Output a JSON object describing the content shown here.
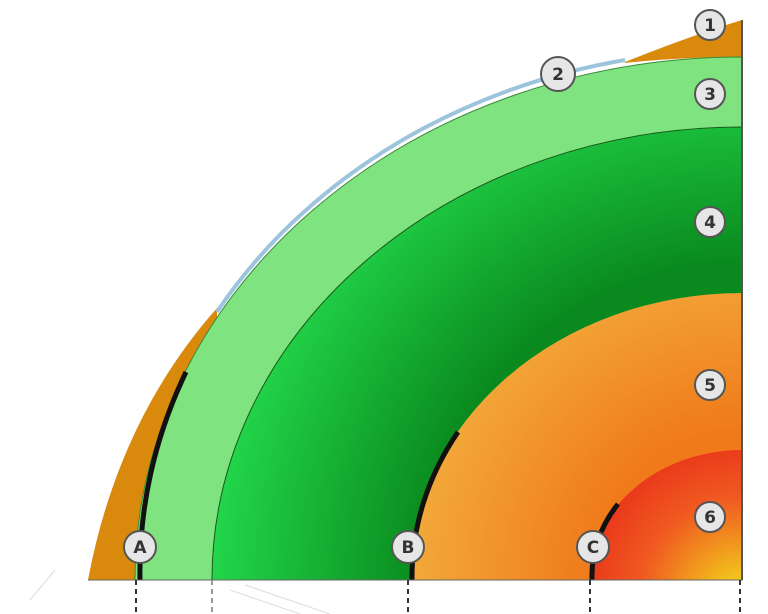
{
  "layers": [
    {
      "label": "1"
    },
    {
      "label": "2"
    },
    {
      "label": "3"
    },
    {
      "label": "4"
    },
    {
      "label": "5"
    },
    {
      "label": "6"
    }
  ],
  "boundaries": [
    {
      "label": "A"
    },
    {
      "label": "B"
    },
    {
      "label": "C"
    }
  ]
}
